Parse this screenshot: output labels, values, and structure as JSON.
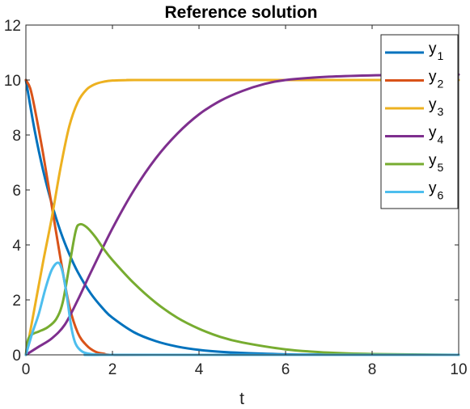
{
  "chart_data": {
    "type": "line",
    "title": "Reference solution",
    "xlabel": "t",
    "ylabel": "",
    "xlim": [
      0,
      10
    ],
    "ylim": [
      0,
      12
    ],
    "xticks": [
      0,
      2,
      4,
      6,
      8,
      10
    ],
    "yticks": [
      0,
      2,
      4,
      6,
      8,
      10,
      12
    ],
    "grid": false,
    "legend_position": "top-right",
    "series": [
      {
        "name": "y",
        "subscript": "1",
        "color": "#0072BD",
        "x": [
          0,
          0.2,
          0.4,
          0.6,
          0.8,
          1.0,
          1.2,
          1.5,
          1.8,
          2.0,
          2.5,
          3.0,
          3.5,
          4.0,
          4.5,
          5.0,
          6.0,
          7.0,
          8.0,
          10.0
        ],
        "y": [
          10,
          8.19,
          6.7,
          5.49,
          4.49,
          3.68,
          3.01,
          2.23,
          1.65,
          1.35,
          0.82,
          0.5,
          0.3,
          0.18,
          0.11,
          0.07,
          0.02,
          0.01,
          0.0,
          0.0
        ]
      },
      {
        "name": "y",
        "subscript": "2",
        "color": "#D95319",
        "x": [
          0,
          0.1,
          0.2,
          0.4,
          0.6,
          0.8,
          1.0,
          1.2,
          1.4,
          1.6,
          1.8,
          2.0,
          3.0,
          10.0
        ],
        "y": [
          10,
          9.7,
          9.0,
          7.3,
          5.4,
          3.5,
          1.8,
          0.8,
          0.35,
          0.12,
          0.04,
          0.0,
          0.0,
          0.0
        ]
      },
      {
        "name": "y",
        "subscript": "3",
        "color": "#EDB120",
        "x": [
          0,
          0.2,
          0.4,
          0.6,
          0.8,
          1.0,
          1.2,
          1.4,
          1.6,
          1.8,
          2.0,
          2.5,
          3.0,
          10.0
        ],
        "y": [
          0,
          1.7,
          3.4,
          5.0,
          6.8,
          8.3,
          9.2,
          9.65,
          9.85,
          9.94,
          9.98,
          10.0,
          10.0,
          10.0
        ]
      },
      {
        "name": "y",
        "subscript": "4",
        "color": "#7E2F8E",
        "x": [
          0,
          0.3,
          0.6,
          0.9,
          1.2,
          1.5,
          2.0,
          2.5,
          3.0,
          3.5,
          4.0,
          4.5,
          5.0,
          5.5,
          6.0,
          7.0,
          8.0,
          9.0,
          10.0
        ],
        "y": [
          0,
          0.3,
          0.6,
          1.1,
          2.0,
          3.0,
          4.6,
          6.0,
          7.15,
          8.05,
          8.75,
          9.25,
          9.6,
          9.85,
          10.0,
          10.12,
          10.17,
          10.19,
          10.2
        ]
      },
      {
        "name": "y",
        "subscript": "5",
        "color": "#77AC30",
        "x": [
          0,
          0.05,
          0.15,
          0.3,
          0.5,
          0.7,
          0.85,
          1.0,
          1.15,
          1.25,
          1.4,
          1.6,
          1.8,
          2.0,
          2.5,
          3.0,
          3.5,
          4.0,
          4.5,
          5.0,
          6.0,
          7.0,
          8.0,
          10.0
        ],
        "y": [
          0,
          0.55,
          0.75,
          0.85,
          1.0,
          1.3,
          1.9,
          3.2,
          4.5,
          4.75,
          4.65,
          4.3,
          3.85,
          3.45,
          2.6,
          1.9,
          1.35,
          0.95,
          0.65,
          0.45,
          0.2,
          0.08,
          0.03,
          0.0
        ]
      },
      {
        "name": "y",
        "subscript": "6",
        "color": "#4DBEEE",
        "x": [
          0,
          0.15,
          0.3,
          0.45,
          0.6,
          0.75,
          0.85,
          0.95,
          1.05,
          1.15,
          1.3,
          1.5,
          1.8,
          2.0,
          10.0
        ],
        "y": [
          0,
          0.8,
          1.5,
          2.4,
          3.1,
          3.35,
          3.0,
          2.1,
          1.0,
          0.4,
          0.12,
          0.03,
          0.0,
          0.0,
          0.0
        ]
      }
    ]
  }
}
